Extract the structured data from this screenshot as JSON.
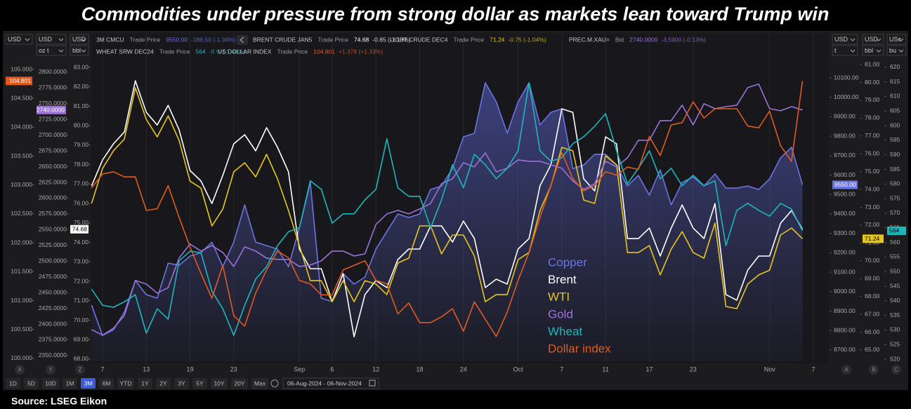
{
  "chart_data": {
    "type": "line",
    "title": "Commodities under pressure from strong dollar as markets lean toward Trump win",
    "source": "Source: LSEG Eikon",
    "quotes": [
      [
        {
          "symbol": "3M CMCU",
          "field": "Trade Price",
          "price": "9550.00",
          "change": "-188.50 (-1.94%)",
          "color": "#6b74e0"
        },
        {
          "symbol": "BRENT CRUDE JAN5",
          "field": "Trade Price",
          "price": "74.68",
          "change": "-0.85 (-1.13%)",
          "color": "#ffffff"
        },
        {
          "symbol": "LIGHT CRUDE DEC4",
          "field": "Trade Price",
          "price": "71.24",
          "change": "-0.75 (-1.04%)",
          "color": "#e6c619"
        },
        {
          "symbol": "PREC.M.XAU=",
          "field": "Bid",
          "price": "2740.0000",
          "change": "-3.5900 (-0.13%)",
          "color": "#9a72d8"
        }
      ],
      [
        {
          "symbol": "WHEAT SRW DEC24",
          "field": "Trade Price",
          "price": "564",
          "change": "-8 ½ (-1.48%)",
          "color": "#1bb8bb"
        },
        {
          "symbol": "US DOLLAR INDEX",
          "field": "Trade Price",
          "price": "104.801",
          "change": "+1.378 (+1.33%)",
          "color": "#e05a20"
        }
      ]
    ],
    "ranges": [
      "1D",
      "5D",
      "10D",
      "1M",
      "3M",
      "6M",
      "YTD",
      "1Y",
      "2Y",
      "3Y",
      "5Y",
      "10Y",
      "20Y",
      "Max"
    ],
    "active_range": "3M",
    "date_range": "06-Aug-2024 - 06-Nov-2024",
    "grid": "x",
    "axes": [
      {
        "name": "X",
        "side": "left",
        "currency": "USD",
        "ylim": [
          99.95,
          105.17
        ],
        "yticks": [
          {
            "value": 100,
            "label": "100.000"
          },
          {
            "value": 100.5,
            "label": "100.500"
          },
          {
            "value": 101,
            "label": "101.000"
          },
          {
            "value": 101.5,
            "label": "101.500"
          },
          {
            "value": 102,
            "label": "102.000"
          },
          {
            "value": 102.5,
            "label": "102.500"
          },
          {
            "value": 103,
            "label": "103.000"
          },
          {
            "value": 103.5,
            "label": "103.500"
          },
          {
            "value": 104,
            "label": "104.000"
          },
          {
            "value": 104.5,
            "label": "104.500"
          },
          {
            "value": 105,
            "label": "105.000"
          }
        ]
      },
      {
        "name": "Y",
        "side": "left",
        "currency": "USD",
        "unit": "oz t",
        "ylim": [
          2341,
          2820
        ],
        "yticks": [
          {
            "value": 2350,
            "label": "2350.0000"
          },
          {
            "value": 2375,
            "label": "2375.0000"
          },
          {
            "value": 2400,
            "label": "2400.0000"
          },
          {
            "value": 2425,
            "label": "2425.0000"
          },
          {
            "value": 2450,
            "label": "2450.0000"
          },
          {
            "value": 2475,
            "label": "2475.0000"
          },
          {
            "value": 2500,
            "label": "2500.0000"
          },
          {
            "value": 2525,
            "label": "2525.0000"
          },
          {
            "value": 2550,
            "label": "2550.0000"
          },
          {
            "value": 2575,
            "label": "2575.0000"
          },
          {
            "value": 2600,
            "label": "2600.0000"
          },
          {
            "value": 2625,
            "label": "2625.0000"
          },
          {
            "value": 2650,
            "label": "2650.0000"
          },
          {
            "value": 2675,
            "label": "2675.0000"
          },
          {
            "value": 2700,
            "label": "2700.0000"
          },
          {
            "value": 2725,
            "label": "2725.0000"
          },
          {
            "value": 2750,
            "label": "2750.0000"
          },
          {
            "value": 2775,
            "label": "2775.0000"
          },
          {
            "value": 2800,
            "label": "2800.0000"
          }
        ]
      },
      {
        "name": "Z",
        "side": "left",
        "currency": "USD",
        "unit": "bbl",
        "ylim": [
          67.89,
          83.4
        ],
        "yticks": [
          {
            "value": 68,
            "label": "68.00"
          },
          {
            "value": 69,
            "label": "69.00"
          },
          {
            "value": 70,
            "label": "70.00"
          },
          {
            "value": 71,
            "label": "71.00"
          },
          {
            "value": 72,
            "label": "72.00"
          },
          {
            "value": 73,
            "label": "73.00"
          },
          {
            "value": 74,
            "label": "74.00"
          },
          {
            "value": 75,
            "label": "75.00"
          },
          {
            "value": 76,
            "label": "76.00"
          },
          {
            "value": 77,
            "label": "77.00"
          },
          {
            "value": 78,
            "label": "78.00"
          },
          {
            "value": 79,
            "label": "79.00"
          },
          {
            "value": 80,
            "label": "80.00"
          },
          {
            "value": 81,
            "label": "81.00"
          },
          {
            "value": 82,
            "label": "82.00"
          },
          {
            "value": 83,
            "label": "83.00"
          }
        ]
      },
      {
        "name": "A",
        "side": "right",
        "currency": "USD",
        "unit": "t",
        "ylim": [
          8642,
          10194
        ],
        "yticks": [
          {
            "value": 8700,
            "label": "8700.00"
          },
          {
            "value": 8800,
            "label": "8800.00"
          },
          {
            "value": 8900,
            "label": "8900.00"
          },
          {
            "value": 9000,
            "label": "9000.00"
          },
          {
            "value": 9100,
            "label": "9100.00"
          },
          {
            "value": 9200,
            "label": "9200.00"
          },
          {
            "value": 9300,
            "label": "9300.00"
          },
          {
            "value": 9400,
            "label": "9400.00"
          },
          {
            "value": 9500,
            "label": "9500.00"
          },
          {
            "value": 9600,
            "label": "9600.00"
          },
          {
            "value": 9700,
            "label": "9700.00"
          },
          {
            "value": 9800,
            "label": "9800.00"
          },
          {
            "value": 9900,
            "label": "9900.00"
          },
          {
            "value": 10000,
            "label": "10000.00"
          },
          {
            "value": 10100,
            "label": "10100.00"
          }
        ]
      },
      {
        "name": "B",
        "side": "right",
        "currency": "USD",
        "unit": "bbl",
        "ylim": [
          64.37,
          81.28
        ],
        "yticks": [
          {
            "value": 65,
            "label": "65.00"
          },
          {
            "value": 66,
            "label": "66.00"
          },
          {
            "value": 67,
            "label": "67.00"
          },
          {
            "value": 68,
            "label": "68.00"
          },
          {
            "value": 69,
            "label": "69.00"
          },
          {
            "value": 70,
            "label": "70.00"
          },
          {
            "value": 71,
            "label": "71.00"
          },
          {
            "value": 72,
            "label": "72.00"
          },
          {
            "value": 73,
            "label": "73.00"
          },
          {
            "value": 74,
            "label": "74.00"
          },
          {
            "value": 75,
            "label": "75.00"
          },
          {
            "value": 76,
            "label": "76.00"
          },
          {
            "value": 77,
            "label": "77.00"
          },
          {
            "value": 78,
            "label": "78.00"
          },
          {
            "value": 79,
            "label": "79.00"
          },
          {
            "value": 80,
            "label": "80.00"
          },
          {
            "value": 81,
            "label": "81.00"
          }
        ]
      },
      {
        "name": "C",
        "side": "right",
        "currency": "USc",
        "unit": "bu",
        "ylim": [
          519.3,
          622.6
        ],
        "yticks": [
          520,
          525,
          530,
          535,
          540,
          545,
          550,
          555,
          560,
          565,
          570,
          575,
          580,
          585,
          590,
          595,
          600,
          605,
          610,
          615,
          620
        ]
      }
    ],
    "categories": [
      null,
      "7",
      null,
      null,
      null,
      "13",
      null,
      null,
      null,
      "19",
      null,
      null,
      null,
      "23",
      null,
      null,
      null,
      null,
      null,
      "Sep",
      null,
      null,
      "6",
      null,
      null,
      null,
      "12",
      null,
      null,
      null,
      "18",
      null,
      null,
      null,
      "24",
      null,
      null,
      null,
      null,
      "Oct",
      null,
      null,
      null,
      "7",
      null,
      null,
      null,
      "11",
      null,
      null,
      null,
      "17",
      null,
      null,
      null,
      "23",
      null,
      null,
      null,
      null,
      null,
      null,
      "Nov",
      null,
      null,
      null,
      "7"
    ],
    "series": [
      {
        "name": "Copper",
        "color": "#6b74e0",
        "axis": "A",
        "area": true,
        "last_label": "9550.00",
        "values": [
          8931,
          8775,
          8804,
          8895,
          9057,
          8985,
          8967,
          9147,
          9136,
          9183,
          9201,
          9255,
          9129,
          9255,
          9447,
          9255,
          9237,
          9219,
          9129,
          9328,
          9562,
          8967,
          8949,
          9093,
          9039,
          9075,
          9219,
          9310,
          9400,
          9382,
          9400,
          9526,
          9544,
          9634,
          9797,
          9815,
          10075,
          9977,
          9815,
          9977,
          10075,
          9858,
          9923,
          9941,
          9634,
          9652,
          9707,
          9707,
          9652,
          9544,
          9598,
          9497,
          9627,
          9447,
          9562,
          9591,
          9544,
          9606,
          9533,
          9533,
          9544,
          9526,
          9580,
          9689,
          9743,
          9550,
          null
        ]
      },
      {
        "name": "Brent",
        "color": "#ffffff",
        "axis": "Z",
        "last_label": "74.68",
        "values": [
          76.91,
          78.24,
          79.07,
          79.68,
          82.31,
          80.69,
          80.04,
          81.05,
          79.79,
          77.7,
          77.16,
          76.0,
          77.45,
          79.07,
          79.54,
          78.71,
          79.9,
          78.89,
          77.63,
          73.66,
          72.65,
          72.65,
          70.96,
          72.4,
          69.15,
          71.32,
          72.04,
          71.68,
          73.12,
          73.66,
          73.66,
          74.85,
          74.85,
          74.02,
          75.1,
          74.2,
          71.68,
          72.11,
          71.86,
          73.66,
          74.2,
          76.91,
          77.99,
          80.87,
          80.69,
          77.27,
          76.65,
          79.43,
          79.07,
          74.2,
          74.2,
          74.74,
          73.3,
          74.74,
          75.93,
          74.74,
          74.2,
          76.0,
          71.32,
          71.03,
          72.58,
          73.3,
          73.3,
          74.99,
          75.64,
          74.68,
          null
        ]
      },
      {
        "name": "WTI",
        "color": "#e6c619",
        "axis": "B",
        "last_label": "71.24",
        "values": [
          73.22,
          75.18,
          76.17,
          76.83,
          79.7,
          77.93,
          76.95,
          78.13,
          76.75,
          74.47,
          74.08,
          71.96,
          72.9,
          74.99,
          75.5,
          74.71,
          75.97,
          74.59,
          72.82,
          70.86,
          68.89,
          68.89,
          67.71,
          68.89,
          67.71,
          68.89,
          68.7,
          68.11,
          69.88,
          70.15,
          71.96,
          71.96,
          70.39,
          71.45,
          71.45,
          70.27,
          67.71,
          68.11,
          68.11,
          70.07,
          70.47,
          72.82,
          74.2,
          76.36,
          76.17,
          73.41,
          73.22,
          75.89,
          75.38,
          70.47,
          70.47,
          70.86,
          69.21,
          70.66,
          71.64,
          70.47,
          70.15,
          72.12,
          67.44,
          67.32,
          68.7,
          69.21,
          69.48,
          71.45,
          71.84,
          71.24,
          null
        ]
      },
      {
        "name": "Gold",
        "color": "#9a72d8",
        "axis": "Y",
        "last_label": "2740.0000",
        "values": [
          2391.3,
          2382.4,
          2393.5,
          2413.6,
          2469.3,
          2463.7,
          2449.2,
          2458.1,
          2504.9,
          2527.2,
          2516,
          2524.9,
          2513.8,
          2491.5,
          2522.7,
          2516,
          2504.9,
          2502.7,
          2502.7,
          2491.5,
          2493.8,
          2500.4,
          2516,
          2516,
          2508.2,
          2511.6,
          2558.3,
          2575,
          2580.6,
          2575,
          2582.8,
          2591.8,
          2622.9,
          2630.7,
          2656.3,
          2649.7,
          2671.9,
          2641.9,
          2647.4,
          2660.8,
          2658.6,
          2658.6,
          2653,
          2647.4,
          2627.4,
          2614,
          2622.9,
          2658.6,
          2649.7,
          2664.1,
          2692,
          2692,
          2723.2,
          2723.2,
          2747.7,
          2716.5,
          2749.9,
          2742.1,
          2745.4,
          2747.7,
          2775.5,
          2781.1,
          2742.1,
          2738.8,
          2745.4,
          2740,
          null
        ]
      },
      {
        "name": "Wheat",
        "color": "#1bb8bb",
        "axis": "C",
        "last_label": "564",
        "values": [
          544.0,
          538.5,
          537.8,
          539.7,
          542.1,
          528.9,
          537.3,
          533.7,
          553.7,
          557.0,
          556.5,
          543.3,
          537.3,
          528.2,
          538.5,
          547.4,
          551.7,
          558.9,
          563.7,
          565.0,
          581.1,
          578.2,
          566.6,
          569.8,
          569.8,
          574.6,
          578.2,
          595.5,
          578.7,
          575.8,
          575.8,
          565.0,
          574.6,
          586.6,
          578.7,
          590.2,
          586.6,
          581.8,
          585.4,
          591.4,
          614.7,
          591.4,
          587.8,
          589.0,
          593.8,
          596.2,
          599.8,
          604.1,
          591.4,
          580.1,
          585.4,
          591.4,
          581.8,
          585.4,
          579.4,
          583.0,
          579.4,
          581.1,
          558.9,
          571.0,
          573.4,
          571.0,
          569.0,
          573.4,
          571.4,
          564,
          null
        ]
      },
      {
        "name": "Dollar index",
        "color": "#e05a20",
        "axis": "X",
        "last_label": "104.801",
        "values": [
          102.95,
          103.19,
          103.23,
          103.14,
          103.14,
          102.56,
          102.59,
          102.99,
          102.44,
          101.93,
          101.47,
          101.04,
          101.61,
          100.74,
          100.56,
          101.13,
          101.53,
          101.86,
          101.74,
          101.35,
          101.29,
          101.1,
          101.1,
          101.53,
          101.61,
          101.69,
          101.35,
          101.29,
          100.77,
          100.96,
          100.62,
          100.62,
          100.72,
          100.86,
          100.47,
          100.98,
          100.68,
          100.38,
          100.8,
          101.35,
          101.83,
          102.44,
          102.99,
          103.56,
          103.11,
          102.9,
          102.99,
          103.23,
          103.17,
          103.31,
          103.27,
          103.84,
          103.51,
          104.04,
          104.08,
          104.44,
          104.16,
          104.32,
          104.32,
          104.32,
          104.02,
          103.99,
          104.28,
          103.68,
          103.41,
          104.801,
          null
        ]
      }
    ]
  }
}
